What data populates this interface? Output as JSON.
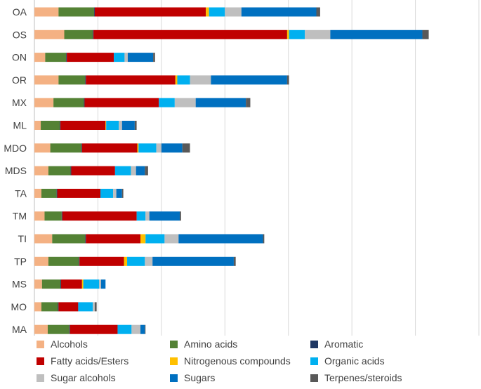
{
  "chart_data": {
    "type": "bar",
    "orientation": "horizontal",
    "stacked": true,
    "title": "",
    "xlabel": "",
    "ylabel": "",
    "xlim": [
      0,
      700
    ],
    "grid": true,
    "legend_position": "bottom",
    "categories": [
      "OA",
      "OS",
      "ON",
      "OR",
      "MX",
      "ML",
      "MDO",
      "MDS",
      "TA",
      "TM",
      "TI",
      "TP",
      "MS",
      "MO",
      "MA"
    ],
    "series": [
      {
        "name": "Alcohols",
        "color": "#F4B183",
        "values": [
          38,
          47,
          17,
          38,
          30,
          10,
          25,
          22,
          11,
          16,
          28,
          22,
          12,
          11,
          21
        ]
      },
      {
        "name": "Amino acids",
        "color": "#548235",
        "values": [
          56,
          45,
          33,
          42,
          48,
          30,
          49,
          35,
          24,
          27,
          52,
          48,
          29,
          26,
          34
        ]
      },
      {
        "name": "Aromatic",
        "color": "#1F3864",
        "values": [
          1,
          1,
          1,
          1,
          1,
          1,
          1,
          1,
          1,
          1,
          1,
          1,
          1,
          1,
          1
        ]
      },
      {
        "name": "Fatty acids/Esters",
        "color": "#C00000",
        "values": [
          175,
          305,
          74,
          141,
          117,
          71,
          87,
          69,
          68,
          117,
          86,
          70,
          33,
          31,
          75
        ]
      },
      {
        "name": "Nitrogenous compounds",
        "color": "#FFC000",
        "values": [
          5,
          3,
          0,
          3,
          0,
          1,
          2,
          0,
          0,
          0,
          8,
          5,
          2,
          0,
          0
        ]
      },
      {
        "name": "Organic acids",
        "color": "#00B0F0",
        "values": [
          25,
          25,
          17,
          20,
          25,
          20,
          28,
          25,
          20,
          14,
          30,
          28,
          25,
          23,
          22
        ]
      },
      {
        "name": "Sugar alcohols",
        "color": "#BFBFBF",
        "values": [
          26,
          40,
          5,
          33,
          33,
          5,
          8,
          8,
          5,
          6,
          22,
          12,
          3,
          3,
          14
        ]
      },
      {
        "name": "Sugars",
        "color": "#0070C0",
        "values": [
          118,
          145,
          40,
          120,
          79,
          20,
          33,
          14,
          9,
          48,
          133,
          128,
          7,
          0,
          7
        ]
      },
      {
        "name": "Terpenes/steroids",
        "color": "#595959",
        "values": [
          6,
          10,
          3,
          3,
          7,
          3,
          12,
          5,
          2,
          2,
          2,
          3,
          0,
          3,
          1
        ]
      }
    ]
  }
}
